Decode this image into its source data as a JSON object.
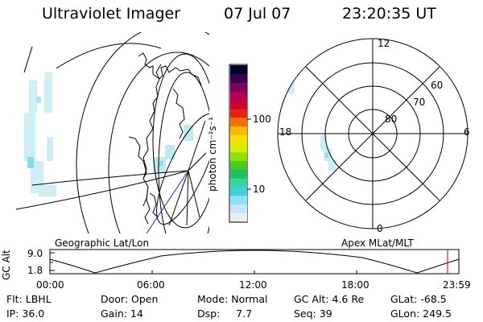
{
  "header": {
    "instrument": "Ultraviolet Imager",
    "date": "07 Jul 07",
    "time": "23:20:35 UT"
  },
  "geo_panel": {
    "label": "Geographic Lat/Lon"
  },
  "apex_panel": {
    "label": "Apex MLat/MLT",
    "mlt_labels": [
      "12",
      "18",
      "6",
      "0"
    ],
    "mlat_labels": [
      "60",
      "70",
      "80"
    ]
  },
  "colorbar": {
    "label": "photon cm⁻²s⁻¹",
    "ticks": [
      "100",
      "10"
    ],
    "colors": [
      "#eeeeee",
      "#c8e8f0",
      "#8fe0f0",
      "#3ccfe0",
      "#30d8a0",
      "#20c060",
      "#40d020",
      "#90e010",
      "#d0f000",
      "#f0e000",
      "#f8b800",
      "#f07000",
      "#e82010",
      "#d00030",
      "#b00050",
      "#80005a",
      "#3a0050",
      "#000030"
    ]
  },
  "altitude_strip": {
    "ylabel": "GC Alt",
    "yticks": [
      "9.0",
      "1.8"
    ],
    "xticks": [
      "00:00",
      "06:00",
      "12:00",
      "18:00",
      "23:59"
    ],
    "marker_fraction": 0.973
  },
  "footer": {
    "row1": [
      {
        "label": "Flt: LBHL"
      },
      {
        "label": "Door: Open"
      },
      {
        "label": "Mode: Normal"
      },
      {
        "label": "GC Alt: 4.6 Re"
      },
      {
        "label": "GLat: -68.5"
      }
    ],
    "row2": [
      {
        "label": "IP: 36.0"
      },
      {
        "label": "Gain: 14"
      },
      {
        "label": "Dsp:     7.7"
      },
      {
        "label": "Seq: 39"
      },
      {
        "label": "GLon: 249.5"
      }
    ]
  }
}
